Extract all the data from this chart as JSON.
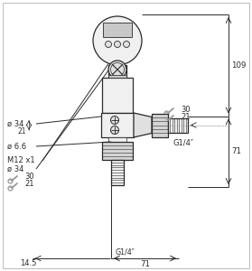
{
  "bg_color": "#ffffff",
  "line_color": "#2a2a2a",
  "fill_light": "#f0f0f0",
  "fill_mid": "#e0e0e0",
  "fill_dark": "#c8c8c8",
  "fill_hex": "#d4d4d4",
  "gray_dim": "#444444",
  "wrench_color": "#999999",
  "labels": {
    "M12x1": "M12 x1",
    "d34_top": "ø 34",
    "d34_mid": "ø 34",
    "d21": "21",
    "d66": "ø 6.6",
    "wrench30_left": "30",
    "wrench21_left": "21",
    "wrench30_right": "30",
    "wrench21_right": "21",
    "G14_right": "G1/4″",
    "G14_bottom": "G1/4″",
    "dim_109": "109",
    "dim_71_right": "71",
    "dim_14_5": "14.5",
    "dim_71_bottom": "71"
  }
}
